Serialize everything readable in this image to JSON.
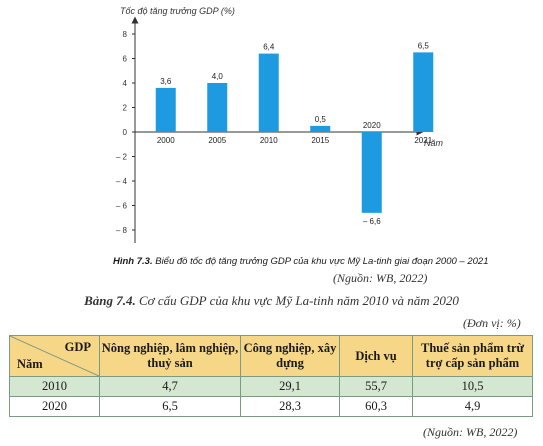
{
  "chart_data": {
    "type": "bar",
    "ylabel": "Tốc độ tăng trưởng GDP (%)",
    "xlabel": "Năm",
    "categories": [
      "2000",
      "2005",
      "2010",
      "2015",
      "2020",
      "2021"
    ],
    "values": [
      3.6,
      4.0,
      6.4,
      0.5,
      -6.6,
      6.5
    ],
    "value_labels": [
      "3,6",
      "4,0",
      "6,4",
      "0,5",
      "– 6,6",
      "6,5"
    ],
    "ylim": [
      -8,
      8
    ],
    "yticks": [
      8,
      6,
      4,
      2,
      0,
      -2,
      -4,
      -6,
      -8
    ],
    "ytick_labels": [
      "8",
      "6",
      "4",
      "2",
      "0",
      "– 2",
      "– 4",
      "– 6",
      "– 8"
    ],
    "bar_color": "#1e9be0",
    "grid": false
  },
  "figure_caption": {
    "number": "Hình 7.3.",
    "text": " Biểu đồ tốc độ tăng trưởng GDP của khu vực Mỹ La-tinh giai đoạn 2000 – 2021"
  },
  "chart_source": "(Nguồn: WB, 2022)",
  "table": {
    "number": "Bảng 7.4.",
    "title": " Cơ cấu GDP của khu vực Mỹ La-tinh năm 2010 và năm 2020",
    "unit": "(Đơn vị: %)",
    "corner_top": "GDP",
    "corner_bottom": "Năm",
    "columns": [
      "Nông nghiệp, lâm nghiệp, thuỷ sản",
      "Công nghiệp, xây dựng",
      "Dịch vụ",
      "Thuế sản phẩm trừ trợ cấp sản phẩm"
    ],
    "rows": [
      {
        "year": "2010",
        "values": [
          "4,7",
          "29,1",
          "55,7",
          "10,5"
        ]
      },
      {
        "year": "2020",
        "values": [
          "6,5",
          "28,3",
          "60,3",
          "4,9"
        ]
      }
    ],
    "header_color": "#f6d788",
    "row_color": "#d3e7d1",
    "source": "(Nguồn: WB, 2022)"
  }
}
